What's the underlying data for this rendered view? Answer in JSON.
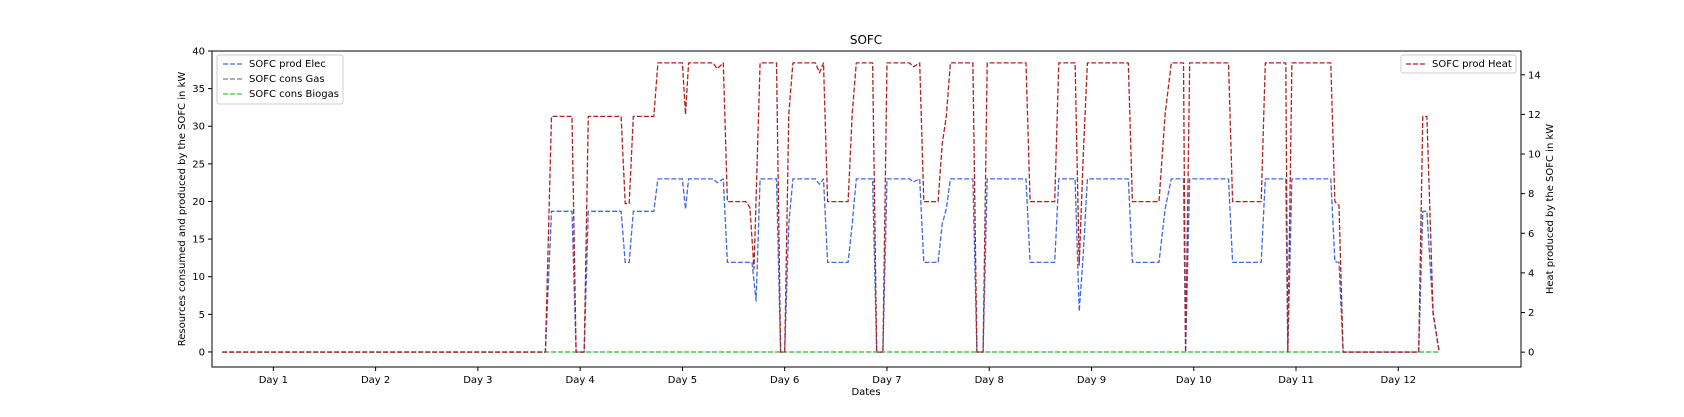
{
  "chart_data": {
    "type": "line",
    "title": "SOFC",
    "xlabel": "Dates",
    "ylabel_left": "Resources consumed and produced by the SOFC in kW",
    "ylabel_right": "Heat produced by the SOFC in kW",
    "x_ticks": [
      "Day 1",
      "Day 2",
      "Day 3",
      "Day 4",
      "Day 5",
      "Day 6",
      "Day 7",
      "Day 8",
      "Day 9",
      "Day 10",
      "Day 11",
      "Day 12"
    ],
    "xlim": [
      0.4,
      13.2
    ],
    "ylim_left": [
      -2,
      40
    ],
    "yticks_left": [
      0,
      5,
      10,
      15,
      20,
      25,
      30,
      35,
      40
    ],
    "ylim_right": [
      -0.75,
      15.2
    ],
    "yticks_right": [
      0,
      2,
      4,
      6,
      8,
      10,
      12,
      14
    ],
    "grid": false,
    "legend_left": "top-left",
    "legend_right": "top-right",
    "series": [
      {
        "name": "SOFC prod Elec",
        "axis": "left",
        "color": "#4169e1",
        "style": "dashed",
        "points": [
          [
            0.5,
            0
          ],
          [
            3.66,
            0
          ],
          [
            3.72,
            18.7
          ],
          [
            3.92,
            18.7
          ],
          [
            3.96,
            0
          ],
          [
            4.04,
            0
          ],
          [
            4.08,
            18.7
          ],
          [
            4.4,
            18.7
          ],
          [
            4.44,
            11.9
          ],
          [
            4.48,
            11.9
          ],
          [
            4.52,
            18.7
          ],
          [
            4.72,
            18.7
          ],
          [
            4.76,
            23
          ],
          [
            5.0,
            23
          ],
          [
            5.03,
            19
          ],
          [
            5.06,
            23
          ],
          [
            5.3,
            23
          ],
          [
            5.34,
            22.5
          ],
          [
            5.4,
            23
          ],
          [
            5.44,
            11.9
          ],
          [
            5.68,
            11.9
          ],
          [
            5.72,
            6.8
          ],
          [
            5.76,
            23
          ],
          [
            5.92,
            23
          ],
          [
            5.96,
            0
          ],
          [
            6.0,
            0
          ],
          [
            6.04,
            17
          ],
          [
            6.08,
            23
          ],
          [
            6.3,
            23
          ],
          [
            6.34,
            22.3
          ],
          [
            6.38,
            23
          ],
          [
            6.42,
            11.9
          ],
          [
            6.62,
            11.9
          ],
          [
            6.66,
            17
          ],
          [
            6.7,
            23
          ],
          [
            6.86,
            23
          ],
          [
            6.9,
            0
          ],
          [
            6.96,
            0
          ],
          [
            7.0,
            23
          ],
          [
            7.22,
            23
          ],
          [
            7.26,
            22.6
          ],
          [
            7.32,
            23
          ],
          [
            7.36,
            11.9
          ],
          [
            7.5,
            11.9
          ],
          [
            7.54,
            17
          ],
          [
            7.58,
            19
          ],
          [
            7.62,
            23
          ],
          [
            7.84,
            23
          ],
          [
            7.88,
            0
          ],
          [
            7.94,
            0
          ],
          [
            7.98,
            23
          ],
          [
            8.36,
            23
          ],
          [
            8.4,
            11.9
          ],
          [
            8.64,
            11.9
          ],
          [
            8.68,
            23
          ],
          [
            8.84,
            23
          ],
          [
            8.88,
            5.4
          ],
          [
            8.92,
            13
          ],
          [
            8.96,
            23
          ],
          [
            9.36,
            23
          ],
          [
            9.4,
            11.9
          ],
          [
            9.66,
            11.9
          ],
          [
            9.72,
            19
          ],
          [
            9.78,
            23
          ],
          [
            9.9,
            23
          ],
          [
            9.92,
            0
          ],
          [
            9.96,
            23
          ],
          [
            10.34,
            23
          ],
          [
            10.38,
            11.9
          ],
          [
            10.66,
            11.9
          ],
          [
            10.7,
            23
          ],
          [
            10.9,
            23
          ],
          [
            10.92,
            0
          ],
          [
            10.96,
            23
          ],
          [
            11.34,
            23
          ],
          [
            11.38,
            12
          ],
          [
            11.42,
            11.9
          ],
          [
            11.46,
            0
          ],
          [
            12.2,
            0
          ],
          [
            12.24,
            18.7
          ],
          [
            12.28,
            18.7
          ],
          [
            12.34,
            5
          ],
          [
            12.4,
            0
          ]
        ]
      },
      {
        "name": "SOFC cons Gas",
        "axis": "left",
        "color": "#808080",
        "style": "dashed",
        "points": [
          [
            0.5,
            0
          ],
          [
            12.4,
            0
          ]
        ]
      },
      {
        "name": "SOFC cons Biogas",
        "axis": "left",
        "color": "#32cd32",
        "style": "dashed",
        "points": [
          [
            0.5,
            0
          ],
          [
            12.4,
            0
          ]
        ]
      },
      {
        "name": "SOFC prod Heat",
        "axis": "right",
        "color": "#b22222",
        "style": "dashed",
        "points": [
          [
            0.5,
            0
          ],
          [
            3.66,
            0
          ],
          [
            3.72,
            11.9
          ],
          [
            3.92,
            11.9
          ],
          [
            3.96,
            0
          ],
          [
            4.04,
            0
          ],
          [
            4.08,
            11.9
          ],
          [
            4.4,
            11.9
          ],
          [
            4.44,
            7.5
          ],
          [
            4.48,
            7.5
          ],
          [
            4.52,
            11.9
          ],
          [
            4.72,
            11.9
          ],
          [
            4.76,
            14.6
          ],
          [
            5.0,
            14.6
          ],
          [
            5.03,
            12
          ],
          [
            5.06,
            14.6
          ],
          [
            5.3,
            14.6
          ],
          [
            5.34,
            14.3
          ],
          [
            5.4,
            14.6
          ],
          [
            5.44,
            7.6
          ],
          [
            5.62,
            7.6
          ],
          [
            5.66,
            7.3
          ],
          [
            5.7,
            4.2
          ],
          [
            5.76,
            14.6
          ],
          [
            5.92,
            14.6
          ],
          [
            5.96,
            0
          ],
          [
            6.0,
            0
          ],
          [
            6.04,
            12
          ],
          [
            6.08,
            14.6
          ],
          [
            6.3,
            14.6
          ],
          [
            6.34,
            14.1
          ],
          [
            6.38,
            14.6
          ],
          [
            6.42,
            7.6
          ],
          [
            6.62,
            7.6
          ],
          [
            6.66,
            12
          ],
          [
            6.7,
            14.6
          ],
          [
            6.86,
            14.6
          ],
          [
            6.9,
            0
          ],
          [
            6.96,
            0
          ],
          [
            7.0,
            14.6
          ],
          [
            7.22,
            14.6
          ],
          [
            7.26,
            14.4
          ],
          [
            7.32,
            14.6
          ],
          [
            7.36,
            7.6
          ],
          [
            7.5,
            7.6
          ],
          [
            7.54,
            10.5
          ],
          [
            7.58,
            11.9
          ],
          [
            7.62,
            14.6
          ],
          [
            7.84,
            14.6
          ],
          [
            7.88,
            0
          ],
          [
            7.94,
            0
          ],
          [
            7.98,
            14.6
          ],
          [
            8.36,
            14.6
          ],
          [
            8.4,
            7.6
          ],
          [
            8.64,
            7.6
          ],
          [
            8.68,
            14.6
          ],
          [
            8.84,
            14.6
          ],
          [
            8.88,
            4.4
          ],
          [
            8.92,
            10
          ],
          [
            8.96,
            14.6
          ],
          [
            9.36,
            14.6
          ],
          [
            9.4,
            7.6
          ],
          [
            9.66,
            7.6
          ],
          [
            9.72,
            12
          ],
          [
            9.78,
            14.6
          ],
          [
            9.9,
            14.6
          ],
          [
            9.92,
            0
          ],
          [
            9.96,
            14.6
          ],
          [
            10.34,
            14.6
          ],
          [
            10.38,
            7.6
          ],
          [
            10.66,
            7.6
          ],
          [
            10.7,
            14.6
          ],
          [
            10.9,
            14.6
          ],
          [
            10.92,
            0
          ],
          [
            10.96,
            14.6
          ],
          [
            11.34,
            14.6
          ],
          [
            11.38,
            7.6
          ],
          [
            11.42,
            7.4
          ],
          [
            11.46,
            0
          ],
          [
            12.2,
            0
          ],
          [
            12.24,
            11.9
          ],
          [
            12.28,
            11.9
          ],
          [
            12.34,
            2
          ],
          [
            12.4,
            0
          ]
        ]
      }
    ]
  }
}
